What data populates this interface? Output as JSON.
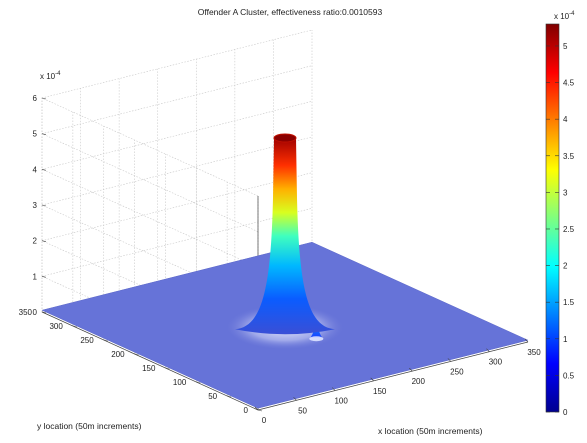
{
  "chart_data": {
    "type": "surface",
    "title": "Offender A Cluster, effectiveness ratio:0.0010593",
    "xlabel": "x location (50m increments)",
    "ylabel": "y location (50m increments)",
    "zlabel": "",
    "z_exponent_label": "x 10",
    "z_exponent_power": "-4",
    "xlim": [
      0,
      350
    ],
    "ylim": [
      0,
      350
    ],
    "zlim": [
      0,
      6
    ],
    "x_ticks": [
      "0",
      "50",
      "100",
      "150",
      "200",
      "250",
      "300",
      "350"
    ],
    "y_ticks": [
      "0",
      "50",
      "100",
      "150",
      "200",
      "250",
      "300",
      "350"
    ],
    "z_ticks": [
      "0",
      "1",
      "2",
      "3",
      "4",
      "5",
      "6"
    ],
    "grid": true,
    "surface_peaks": [
      {
        "x": 175,
        "y": 175,
        "z_peak": 5.3,
        "shape": "plateau-column"
      },
      {
        "x": 178,
        "y": 128,
        "z_peak": 0.6,
        "shape": "spike"
      }
    ],
    "baseline_z": 0.05,
    "colormap": "jet",
    "colorbar": {
      "exponent_label": "x 10",
      "exponent_power": "-4",
      "ticks": [
        "0",
        "0.5",
        "1",
        "1.5",
        "2",
        "2.5",
        "3",
        "3.5",
        "4",
        "4.5",
        "5"
      ],
      "range": [
        0,
        5.3
      ]
    }
  }
}
